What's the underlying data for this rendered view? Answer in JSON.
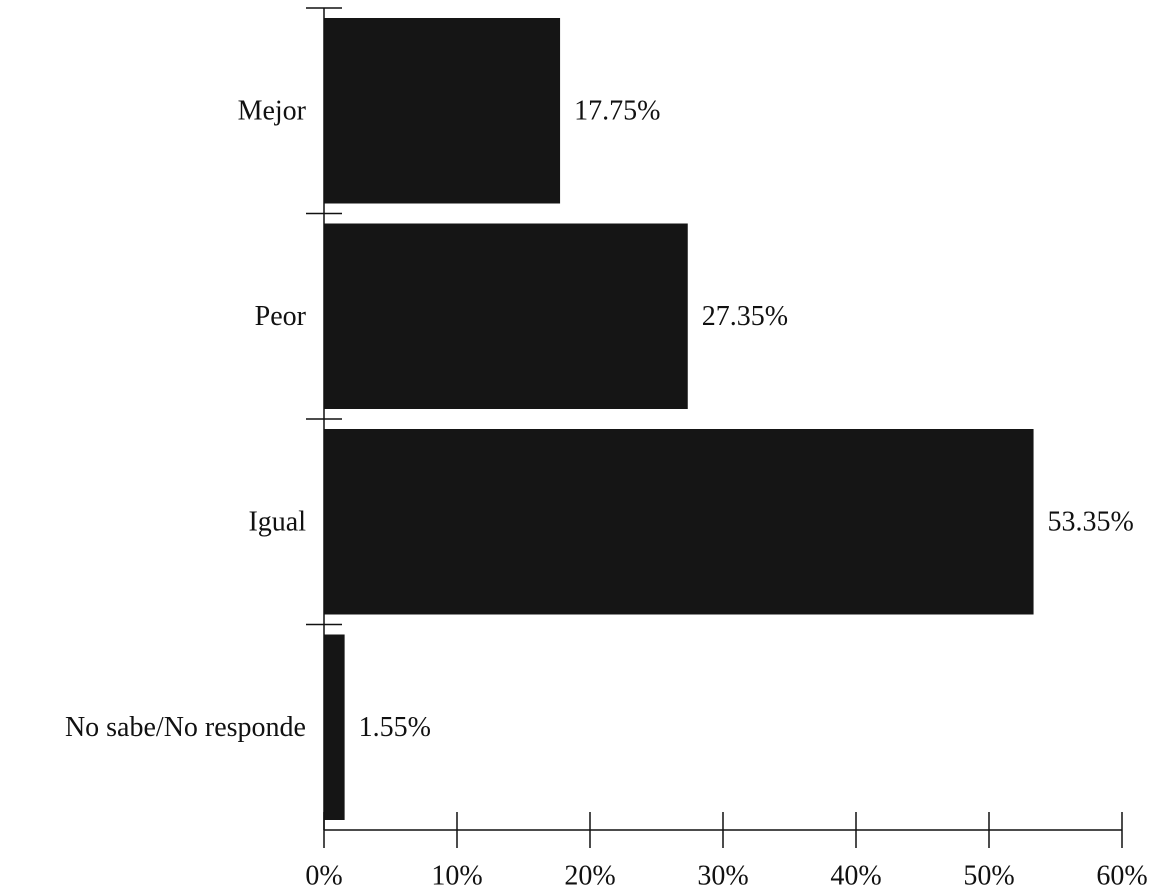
{
  "chart_data": {
    "type": "bar",
    "orientation": "horizontal",
    "title": "",
    "xlabel": "",
    "ylabel": "",
    "categories": [
      "Mejor",
      "Peor",
      "Igual",
      "No sabe/No responde"
    ],
    "values": [
      17.75,
      27.35,
      53.35,
      1.55
    ],
    "data_labels": [
      "17.75%",
      "27.35%",
      "53.35%",
      "1.55%"
    ],
    "xlim": [
      0,
      60
    ],
    "x_ticks": [
      0,
      10,
      20,
      30,
      40,
      50,
      60
    ],
    "x_tick_labels": [
      "0%",
      "10%",
      "20%",
      "30%",
      "40%",
      "50%",
      "60%"
    ],
    "grid": false,
    "legend": "none",
    "bar_color": "#151515"
  }
}
